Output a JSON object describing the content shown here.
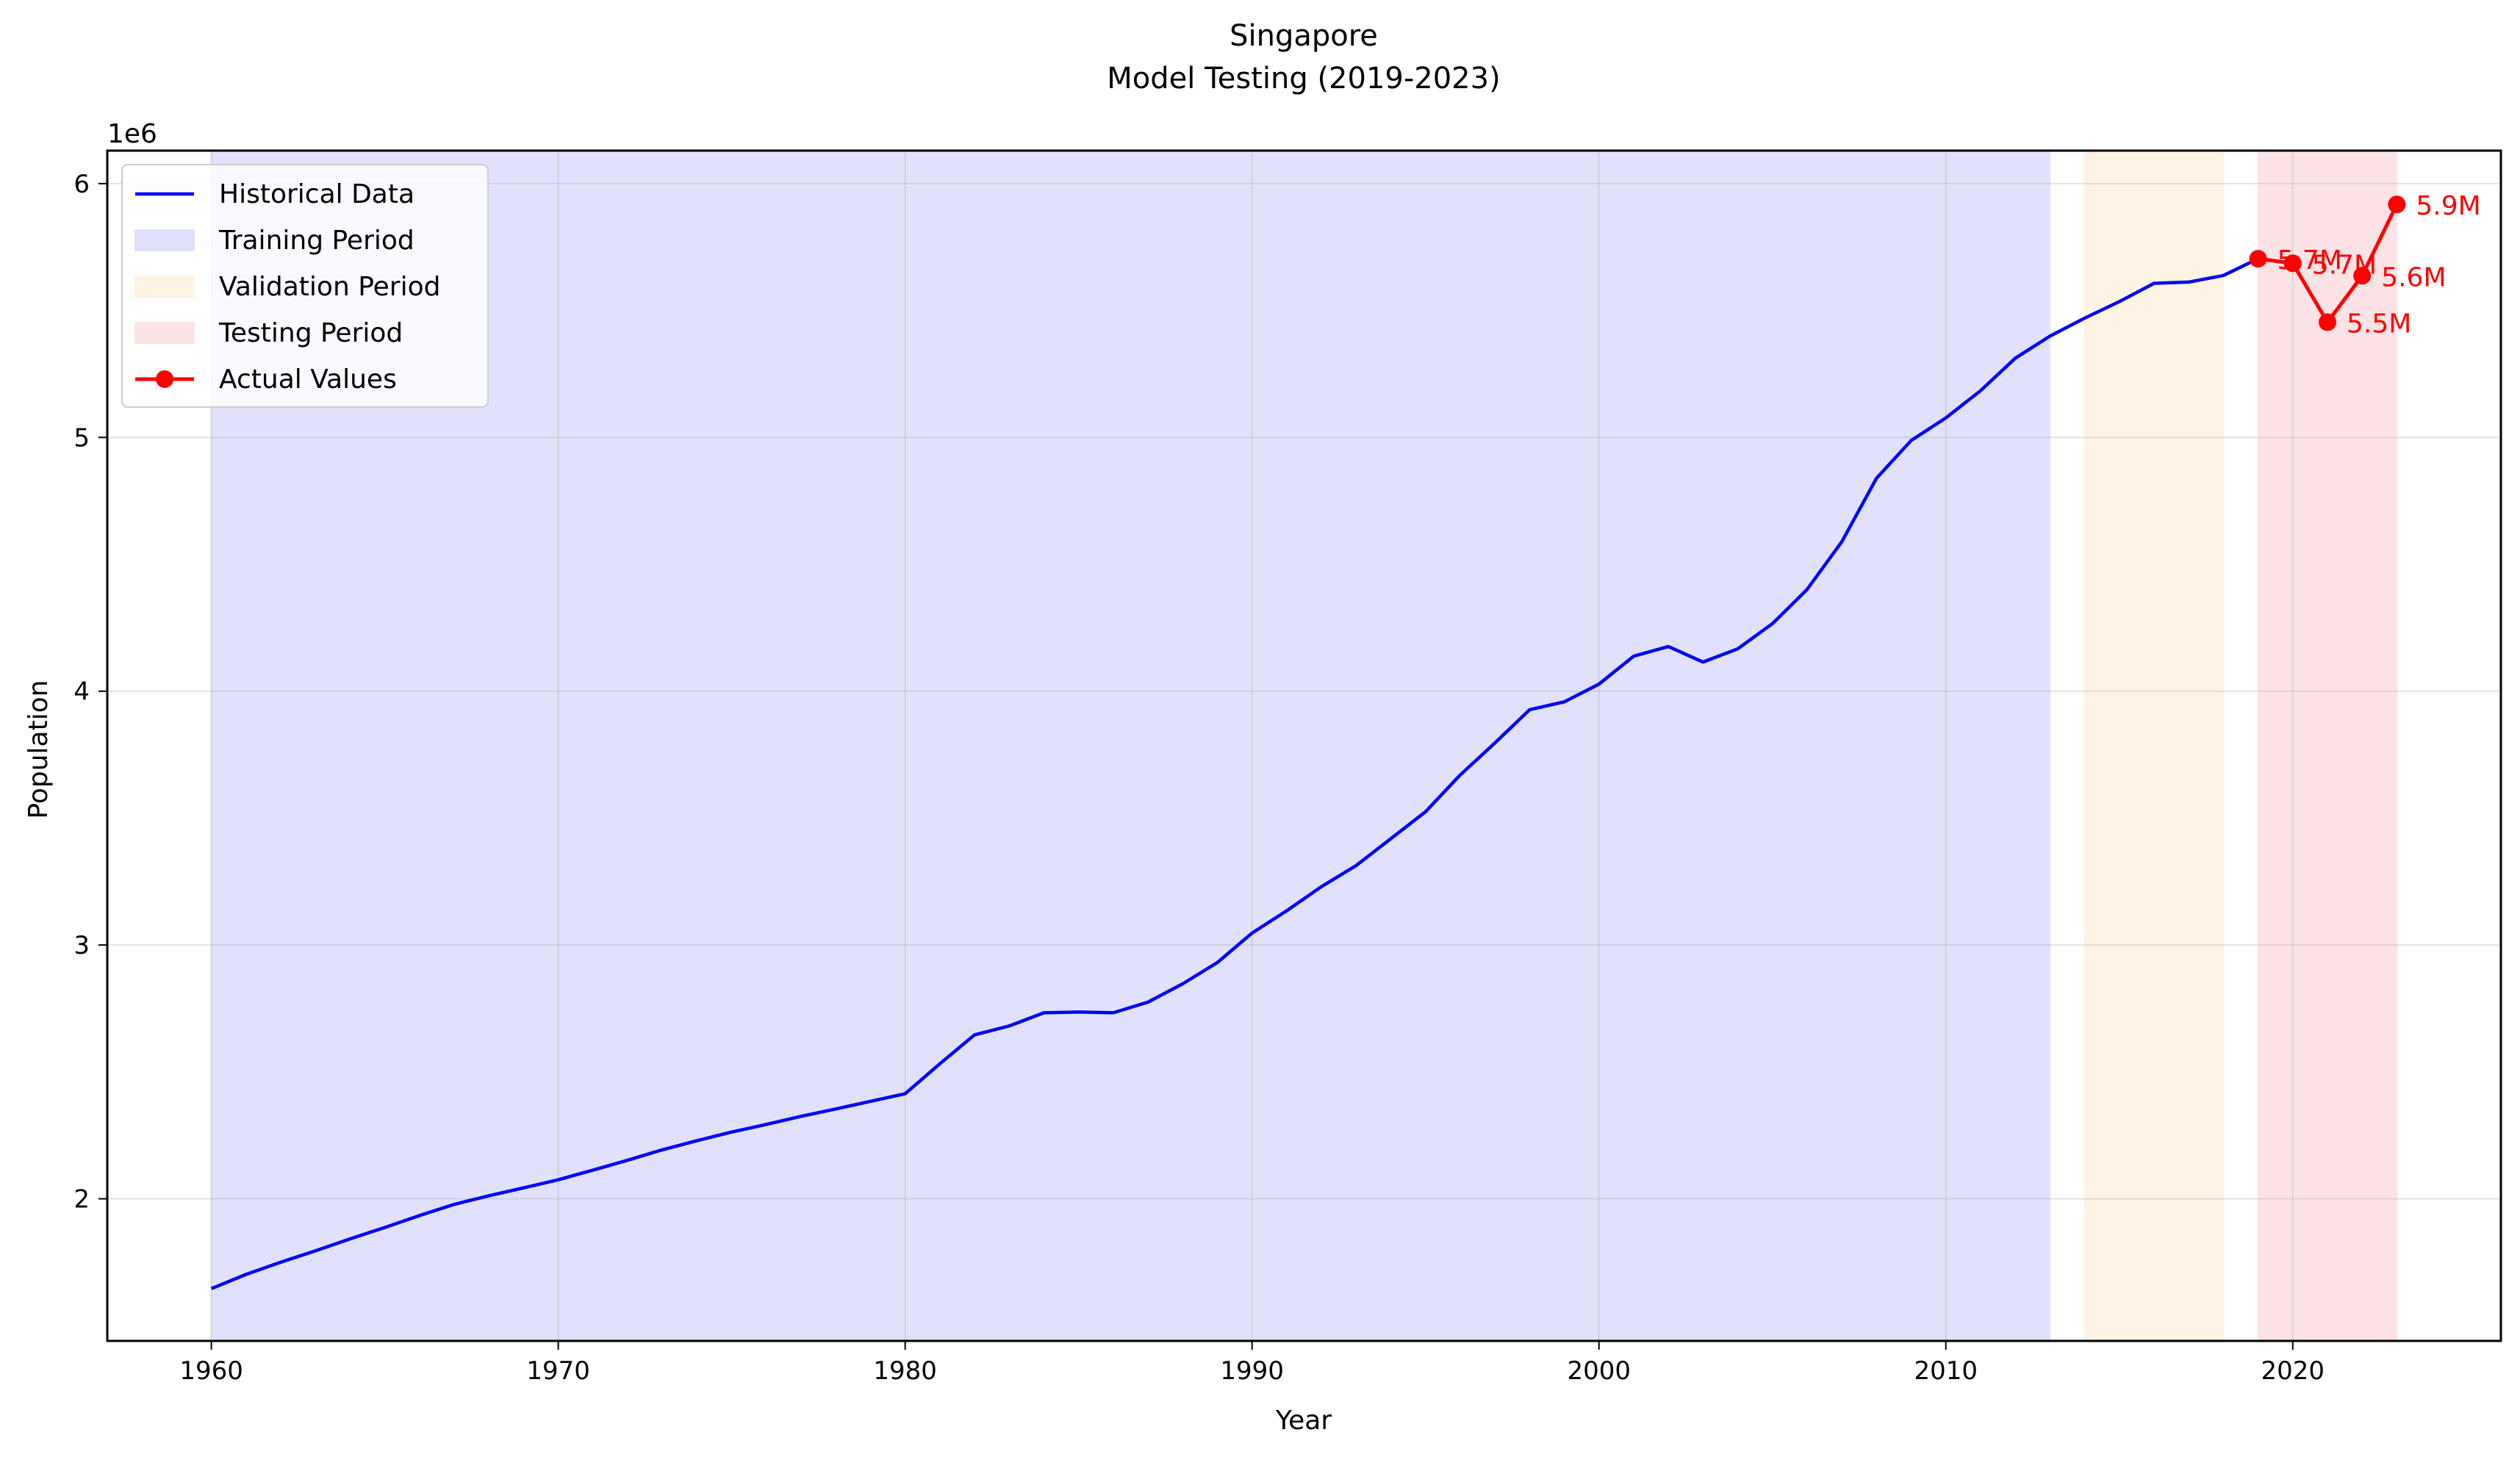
{
  "chart_data": {
    "type": "line",
    "title": "Singapore",
    "subtitle": "Model Testing (2019-2023)",
    "xlabel": "Year",
    "ylabel": "Population",
    "y_offset_label": "1e6",
    "xlim": [
      1957,
      2026
    ],
    "ylim": [
      1440000,
      6130000
    ],
    "x_ticks": [
      1960,
      1970,
      1980,
      1990,
      2000,
      2010,
      2020
    ],
    "x_tick_labels": [
      "1960",
      "1970",
      "1980",
      "1990",
      "2000",
      "2010",
      "2020"
    ],
    "y_ticks": [
      2000000,
      3000000,
      4000000,
      5000000,
      6000000
    ],
    "y_tick_labels": [
      "2",
      "3",
      "4",
      "5",
      "6"
    ],
    "grid": true,
    "legend_position": "top-left",
    "colors": {
      "historical": "#0000ff",
      "actual": "#ff0000",
      "training": "#e1e1fc",
      "validation": "#fdf4e3",
      "testing": "#fde3e6"
    },
    "periods": [
      {
        "name": "Training Period",
        "start": 1960,
        "end": 2013,
        "color": "#e1e1fc"
      },
      {
        "name": "Validation Period",
        "start": 2014,
        "end": 2018,
        "color": "#fdf4e3"
      },
      {
        "name": "Testing Period",
        "start": 2019,
        "end": 2023,
        "color": "#fde3e6"
      }
    ],
    "series": [
      {
        "name": "Historical Data",
        "color": "#0000ff",
        "x": [
          1960,
          1961,
          1962,
          1963,
          1964,
          1965,
          1966,
          1967,
          1968,
          1969,
          1970,
          1971,
          1972,
          1973,
          1974,
          1975,
          1976,
          1977,
          1978,
          1979,
          1980,
          1981,
          1982,
          1983,
          1984,
          1985,
          1986,
          1987,
          1988,
          1989,
          1990,
          1991,
          1992,
          1993,
          1994,
          1995,
          1996,
          1997,
          1998,
          1999,
          2000,
          2001,
          2002,
          2003,
          2004,
          2005,
          2006,
          2007,
          2008,
          2009,
          2010,
          2011,
          2012,
          2013,
          2014,
          2015,
          2016,
          2017,
          2018,
          2019
        ],
        "values": [
          1646000,
          1702000,
          1750000,
          1795000,
          1842000,
          1887000,
          1934000,
          1978000,
          2012000,
          2043000,
          2075000,
          2113000,
          2152000,
          2193000,
          2229000,
          2263000,
          2293000,
          2325000,
          2354000,
          2384000,
          2414000,
          2532000,
          2646000,
          2681000,
          2733000,
          2736000,
          2733000,
          2775000,
          2847000,
          2931000,
          3047000,
          3135000,
          3230000,
          3313000,
          3419000,
          3525000,
          3670000,
          3796000,
          3927000,
          3958000,
          4028000,
          4138000,
          4176000,
          4115000,
          4167000,
          4266000,
          4401000,
          4589000,
          4839000,
          4988000,
          5077000,
          5184000,
          5312000,
          5399000,
          5470000,
          5535000,
          5607000,
          5612000,
          5638000,
          5704000
        ]
      },
      {
        "name": "Actual Values",
        "color": "#ff0000",
        "x": [
          2019,
          2020,
          2021,
          2022,
          2023
        ],
        "values": [
          5704000,
          5686000,
          5454000,
          5637000,
          5918000
        ],
        "labels": [
          "5.7M",
          "5.7M",
          "5.5M",
          "5.6M",
          "5.9M"
        ]
      }
    ],
    "legend": [
      {
        "label": "Historical Data",
        "kind": "line",
        "color": "#0000ff"
      },
      {
        "label": "Training Period",
        "kind": "patch",
        "color": "#e1e1fc"
      },
      {
        "label": "Validation Period",
        "kind": "patch",
        "color": "#fdf4e3"
      },
      {
        "label": "Testing Period",
        "kind": "patch",
        "color": "#fde3e6"
      },
      {
        "label": "Actual Values",
        "kind": "marker-line",
        "color": "#ff0000"
      }
    ]
  }
}
